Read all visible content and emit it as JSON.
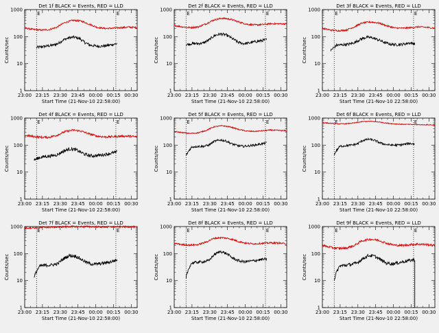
{
  "page": {
    "background": "#f0f0f0",
    "x_axis_title": "Start Time (21-Nov-10 22:58:00)",
    "y_axis_title": "Counts/sec",
    "marker_label": "E"
  },
  "series_colors": {
    "events": "#000000",
    "lld": "#dd0000"
  },
  "chart_data": [
    {
      "type": "line",
      "title": "Det 1f BLACK = Events, RED = LLD",
      "xlabel": "Start Time (21-Nov-10 22:58:00)",
      "ylabel": "Counts/sec",
      "xticks": [
        "23:00",
        "23:15",
        "23:30",
        "23:45",
        "00:00",
        "00:15",
        "00:30"
      ],
      "yticks": [
        "1",
        "10",
        "100",
        "1000"
      ],
      "y_scale": "log",
      "xlim_minutes_after_23_00": [
        0,
        95
      ],
      "ylim": [
        1,
        1000
      ],
      "markers_minutes": [
        10,
        77
      ],
      "series": [
        {
          "color": "#000000",
          "start": 10,
          "end": 78,
          "y": [
            40,
            42,
            45,
            48,
            55,
            75,
            90,
            96,
            85,
            60,
            48,
            45,
            44,
            46,
            50,
            55
          ],
          "noise": 0.05
        },
        {
          "color": "#dd0000",
          "start": 0,
          "end": 95,
          "y": [
            210,
            185,
            175,
            180,
            220,
            330,
            400,
            380,
            290,
            220,
            200,
            205,
            215,
            225,
            215
          ],
          "noise": 0.03
        }
      ]
    },
    {
      "type": "line",
      "title": "Det 2f BLACK = Events, RED = LLD",
      "xlabel": "Start Time (21-Nov-10 22:58:00)",
      "ylabel": "Counts/sec",
      "xticks": [
        "23:00",
        "23:15",
        "23:30",
        "23:45",
        "00:00",
        "00:15",
        "00:30"
      ],
      "yticks": [
        "1",
        "10",
        "100",
        "1000"
      ],
      "y_scale": "log",
      "xlim_minutes_after_23_00": [
        0,
        95
      ],
      "ylim": [
        1,
        1000
      ],
      "markers_minutes": [
        10,
        77
      ],
      "series": [
        {
          "color": "#000000",
          "start": 10,
          "end": 78,
          "y": [
            50,
            55,
            55,
            58,
            75,
            110,
            125,
            115,
            85,
            62,
            55,
            58,
            65,
            70,
            78
          ],
          "noise": 0.05
        },
        {
          "color": "#dd0000",
          "start": 0,
          "end": 95,
          "y": [
            260,
            230,
            215,
            230,
            300,
            420,
            480,
            440,
            350,
            290,
            270,
            280,
            300,
            300,
            295
          ],
          "noise": 0.03
        }
      ]
    },
    {
      "type": "line",
      "title": "Det 3f BLACK = Events, RED = LLD",
      "xlabel": "Start Time (21-Nov-10 22:58:00)",
      "ylabel": "Counts/sec",
      "xticks": [
        "23:00",
        "23:15",
        "23:30",
        "23:45",
        "00:00",
        "00:15",
        "00:30"
      ],
      "yticks": [
        "1",
        "10",
        "100",
        "1000"
      ],
      "y_scale": "log",
      "xlim_minutes_after_23_00": [
        0,
        95
      ],
      "ylim": [
        1,
        1000
      ],
      "markers_minutes": [
        10,
        77
      ],
      "series": [
        {
          "color": "#000000",
          "start": 7,
          "end": 78,
          "y": [
            30,
            48,
            50,
            52,
            60,
            80,
            95,
            90,
            75,
            60,
            52,
            50,
            52,
            58,
            55
          ],
          "noise": 0.05
        },
        {
          "color": "#dd0000",
          "start": 0,
          "end": 95,
          "y": [
            200,
            175,
            165,
            175,
            230,
            320,
            350,
            320,
            250,
            210,
            205,
            215,
            230,
            220,
            205
          ],
          "noise": 0.03
        }
      ]
    },
    {
      "type": "line",
      "title": "Det 4f BLACK = Events, RED = LLD",
      "xlabel": "Start Time (21-Nov-10 22:58:00)",
      "ylabel": "Counts/sec",
      "xticks": [
        "23:00",
        "23:15",
        "23:30",
        "23:45",
        "00:00",
        "00:15",
        "00:30"
      ],
      "yticks": [
        "1",
        "10",
        "100",
        "1000"
      ],
      "y_scale": "log",
      "xlim_minutes_after_23_00": [
        0,
        95
      ],
      "ylim": [
        1,
        1000
      ],
      "markers_minutes": [
        10,
        77
      ],
      "series": [
        {
          "color": "#000000",
          "start": 8,
          "end": 78,
          "y": [
            28,
            35,
            38,
            40,
            45,
            60,
            72,
            68,
            52,
            42,
            40,
            42,
            45,
            50,
            55
          ],
          "noise": 0.06
        },
        {
          "color": "#dd0000",
          "start": 0,
          "end": 95,
          "y": [
            230,
            210,
            195,
            195,
            230,
            310,
            360,
            330,
            260,
            215,
            200,
            205,
            215,
            215,
            200
          ],
          "noise": 0.04
        }
      ]
    },
    {
      "type": "line",
      "title": "Det 5f BLACK = Events, RED = LLD",
      "xlabel": "Start Time (21-Nov-10 22:58:00)",
      "ylabel": "Counts/sec",
      "xticks": [
        "23:00",
        "23:15",
        "23:30",
        "23:45",
        "00:00",
        "00:15",
        "00:30"
      ],
      "yticks": [
        "1",
        "10",
        "100",
        "1000"
      ],
      "y_scale": "log",
      "xlim_minutes_after_23_00": [
        0,
        95
      ],
      "ylim": [
        1,
        1000
      ],
      "markers_minutes": [
        10,
        77
      ],
      "series": [
        {
          "color": "#000000",
          "start": 10,
          "end": 78,
          "y": [
            40,
            85,
            90,
            90,
            100,
            140,
            155,
            140,
            110,
            95,
            90,
            95,
            100,
            110,
            120
          ],
          "noise": 0.04
        },
        {
          "color": "#dd0000",
          "start": 0,
          "end": 95,
          "y": [
            320,
            290,
            270,
            285,
            350,
            480,
            520,
            470,
            380,
            330,
            320,
            340,
            360,
            350,
            340
          ],
          "noise": 0.02
        }
      ]
    },
    {
      "type": "line",
      "title": "Det 6f BLACK = Events, RED = LLD",
      "xlabel": "Start Time (21-Nov-10 22:58:00)",
      "ylabel": "Counts/sec",
      "xticks": [
        "23:00",
        "23:15",
        "23:30",
        "23:45",
        "00:00",
        "00:15",
        "00:30"
      ],
      "yticks": [
        "1",
        "10",
        "100",
        "1000"
      ],
      "y_scale": "log",
      "xlim_minutes_after_23_00": [
        0,
        95
      ],
      "ylim": [
        1,
        1000
      ],
      "markers_minutes": [
        10,
        77
      ],
      "series": [
        {
          "color": "#000000",
          "start": 10,
          "end": 78,
          "y": [
            45,
            90,
            95,
            100,
            110,
            150,
            165,
            150,
            120,
            105,
            100,
            100,
            105,
            115,
            110
          ],
          "noise": 0.04
        },
        {
          "color": "#dd0000",
          "start": 0,
          "end": 95,
          "y": [
            680,
            640,
            610,
            620,
            660,
            740,
            760,
            720,
            650,
            610,
            590,
            580,
            570,
            565,
            555
          ],
          "noise": 0.015
        }
      ]
    },
    {
      "type": "line",
      "title": "Det 7f BLACK = Events, RED = LLD",
      "xlabel": "Start Time (21-Nov-10 22:58:00)",
      "ylabel": "Counts/sec",
      "xticks": [
        "23:00",
        "23:15",
        "23:30",
        "23:45",
        "00:00",
        "00:15",
        "00:30"
      ],
      "yticks": [
        "1",
        "10",
        "100",
        "1000"
      ],
      "y_scale": "log",
      "xlim_minutes_after_23_00": [
        0,
        95
      ],
      "ylim": [
        1,
        1000
      ],
      "markers_minutes": [
        10,
        77
      ],
      "series": [
        {
          "color": "#000000",
          "start": 8,
          "end": 78,
          "y": [
            13,
            35,
            37,
            38,
            42,
            65,
            85,
            80,
            60,
            45,
            40,
            42,
            45,
            50,
            58
          ],
          "noise": 0.06
        },
        {
          "color": "#dd0000",
          "start": 0,
          "end": 95,
          "y": [
            880,
            900,
            920,
            940,
            960,
            990,
            1000,
            1000,
            1000,
            980,
            970,
            980,
            990,
            985,
            960
          ],
          "noise": 0.03
        }
      ]
    },
    {
      "type": "line",
      "title": "Det 8f BLACK = Events, RED = LLD",
      "xlabel": "Start Time (21-Nov-10 22:58:00)",
      "ylabel": "Counts/sec",
      "xticks": [
        "23:00",
        "23:15",
        "23:30",
        "23:45",
        "00:00",
        "00:15",
        "00:30"
      ],
      "yticks": [
        "1",
        "10",
        "100",
        "1000"
      ],
      "y_scale": "log",
      "xlim_minutes_after_23_00": [
        0,
        95
      ],
      "ylim": [
        1,
        1000
      ],
      "markers_minutes": [
        10,
        77
      ],
      "series": [
        {
          "color": "#000000",
          "start": 10,
          "end": 78,
          "y": [
            12,
            45,
            48,
            50,
            55,
            95,
            120,
            100,
            70,
            55,
            50,
            52,
            55,
            60,
            62
          ],
          "noise": 0.05
        },
        {
          "color": "#dd0000",
          "start": 0,
          "end": 95,
          "y": [
            240,
            215,
            205,
            215,
            270,
            370,
            390,
            350,
            280,
            240,
            230,
            240,
            250,
            245,
            230
          ],
          "noise": 0.03
        }
      ]
    },
    {
      "type": "line",
      "title": "Det 9f BLACK = Events, RED = LLD",
      "xlabel": "Start Time (21-Nov-10 22:58:00)",
      "ylabel": "Counts/sec",
      "xticks": [
        "23:00",
        "23:15",
        "23:30",
        "23:45",
        "00:00",
        "00:15",
        "00:30"
      ],
      "yticks": [
        "1",
        "10",
        "100",
        "1000"
      ],
      "y_scale": "log",
      "xlim_minutes_after_23_00": [
        0,
        95
      ],
      "ylim": [
        1,
        1000
      ],
      "markers_minutes": [
        10,
        77
      ],
      "series": [
        {
          "color": "#000000",
          "start": 10,
          "end": 78,
          "y": [
            10,
            35,
            37,
            40,
            45,
            65,
            85,
            80,
            60,
            45,
            42,
            45,
            50,
            55,
            60
          ],
          "noise": 0.06,
          "drop_to": 1
        },
        {
          "color": "#dd0000",
          "start": 0,
          "end": 95,
          "y": [
            200,
            170,
            155,
            160,
            200,
            300,
            340,
            310,
            240,
            205,
            200,
            215,
            225,
            215,
            200
          ],
          "noise": 0.04
        }
      ]
    }
  ]
}
